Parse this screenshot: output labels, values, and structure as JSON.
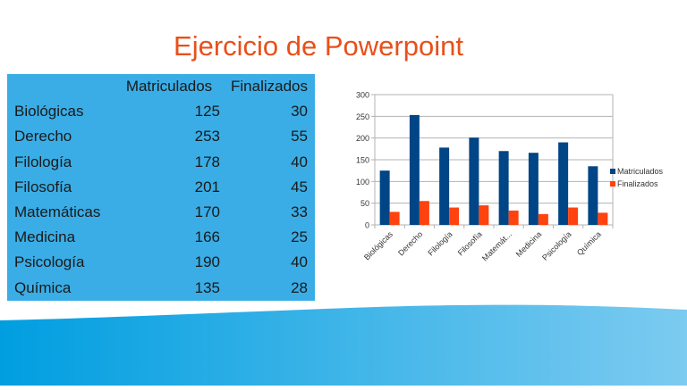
{
  "slide": {
    "title": "Ejercicio de Powerpoint"
  },
  "table": {
    "headers": [
      "",
      "Matriculados",
      "Finalizados"
    ],
    "rows": [
      {
        "label": "Biológicas",
        "matriculados": "125",
        "finalizados": "30"
      },
      {
        "label": "Derecho",
        "matriculados": "253",
        "finalizados": "55"
      },
      {
        "label": "Filología",
        "matriculados": "178",
        "finalizados": "40"
      },
      {
        "label": "Filosofía",
        "matriculados": "201",
        "finalizados": "45"
      },
      {
        "label": "Matemáticas",
        "matriculados": "170",
        "finalizados": "33"
      },
      {
        "label": "Medicina",
        "matriculados": "166",
        "finalizados": "25"
      },
      {
        "label": "Psicología",
        "matriculados": "190",
        "finalizados": "40"
      },
      {
        "label": "Química",
        "matriculados": "135",
        "finalizados": "28"
      }
    ],
    "background": "#3aade6"
  },
  "colors": {
    "title": "#e8501a",
    "matriculados": "#004586",
    "finalizados": "#ff420e",
    "wave_start": "#009ee0",
    "wave_end": "#7ccbf0"
  },
  "chart_data": {
    "type": "bar",
    "title": "",
    "xlabel": "",
    "ylabel": "",
    "categories": [
      "Biológicas",
      "Derecho",
      "Filología",
      "Filosofía",
      "Matemáticas",
      "Medicina",
      "Psicología",
      "Química"
    ],
    "category_tick_labels": [
      "Biológicas",
      "Derecho",
      "Filología",
      "Filosofía",
      "Matemát...",
      "Medicina",
      "Psicología",
      "Química"
    ],
    "series": [
      {
        "name": "Matriculados",
        "values": [
          125,
          253,
          178,
          201,
          170,
          166,
          190,
          135
        ],
        "color": "#004586"
      },
      {
        "name": "Finalizados",
        "values": [
          30,
          55,
          40,
          45,
          33,
          25,
          40,
          28
        ],
        "color": "#ff420e"
      }
    ],
    "ylim": [
      0,
      300
    ],
    "yticks": [
      0,
      50,
      100,
      150,
      200,
      250,
      300
    ],
    "grid": true,
    "legend_position": "right"
  }
}
